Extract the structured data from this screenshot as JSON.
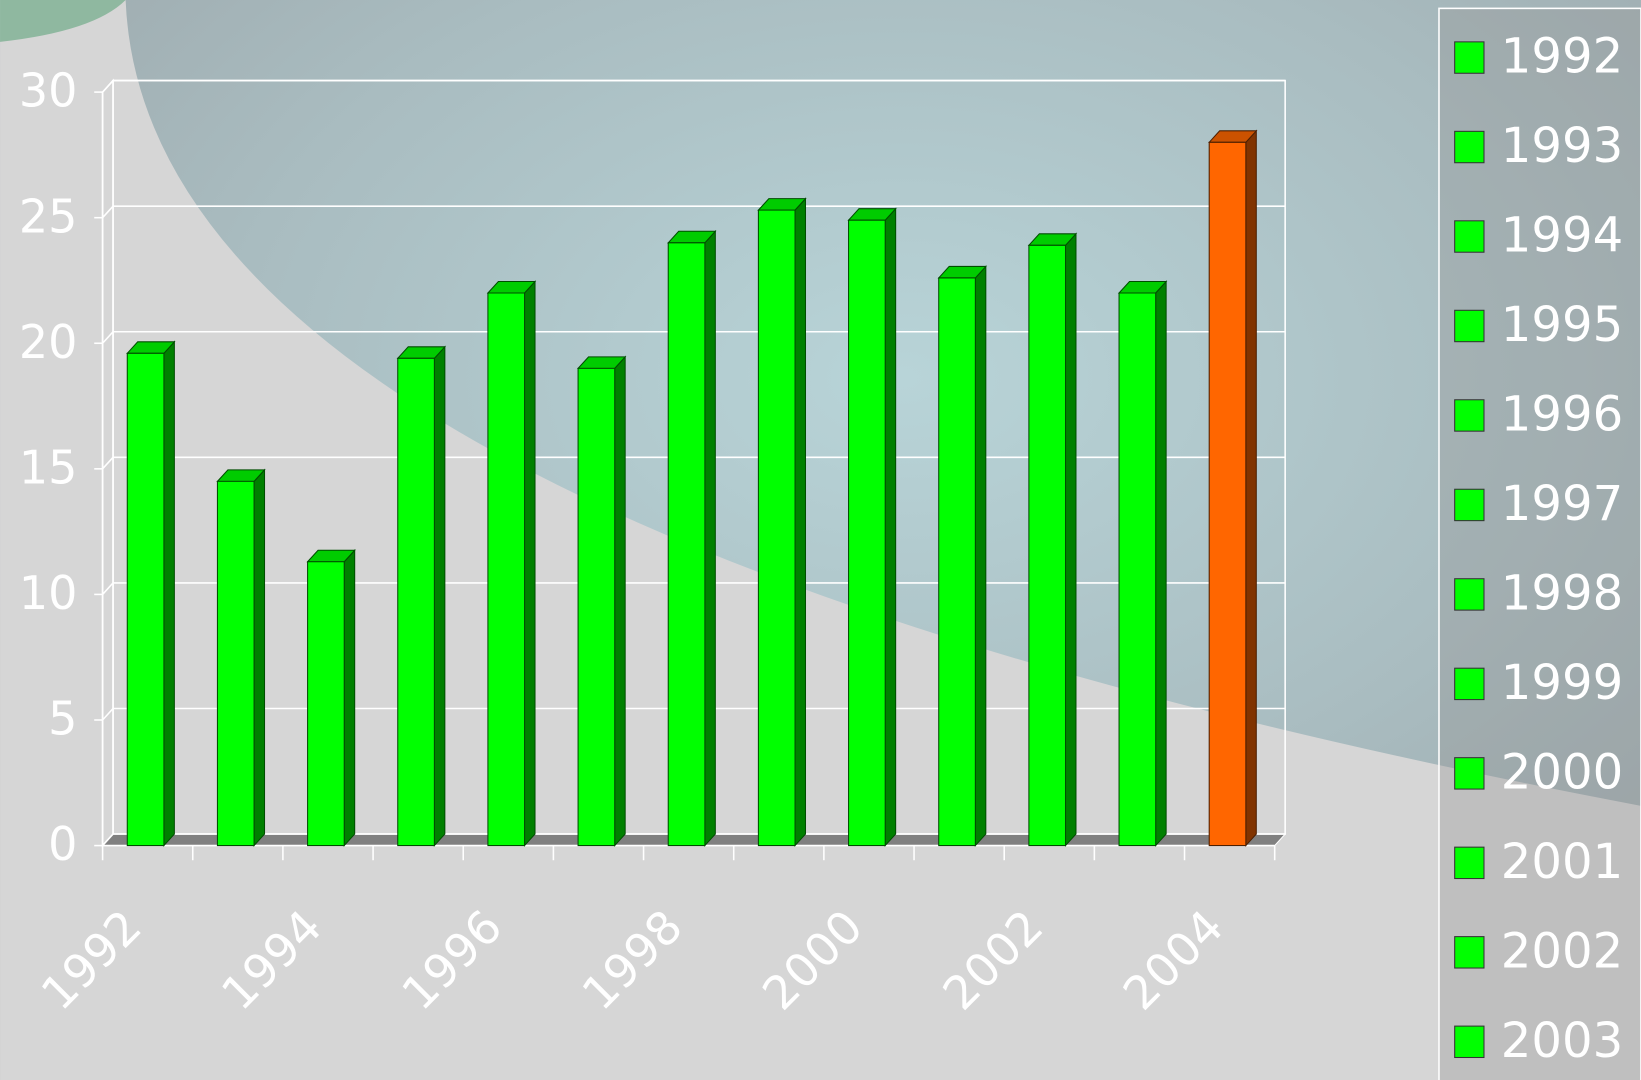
{
  "chart_data": {
    "type": "bar3d",
    "categories": [
      "1992",
      null,
      "1994",
      null,
      "1996",
      null,
      "1998",
      null,
      "2000",
      null,
      "2002",
      null,
      "2004"
    ],
    "values": [
      19.6,
      14.5,
      11.3,
      19.4,
      22.0,
      19.0,
      24.0,
      25.3,
      24.9,
      22.6,
      23.9,
      22.0,
      28.0
    ],
    "colors": [
      "#00ff00",
      "#00ff00",
      "#00ff00",
      "#00ff00",
      "#00ff00",
      "#00ff00",
      "#00ff00",
      "#00ff00",
      "#00ff00",
      "#00ff00",
      "#00ff00",
      "#00ff00",
      "#ff6600"
    ],
    "ylim": [
      0,
      30
    ],
    "yticks": [
      0,
      5,
      10,
      15,
      20,
      25,
      30
    ],
    "grid": true,
    "legend": [
      "1992",
      "1993",
      "1994",
      "1995",
      "1996",
      "1997",
      "1998",
      "1999",
      "2000",
      "2001",
      "2002",
      "2003"
    ]
  }
}
